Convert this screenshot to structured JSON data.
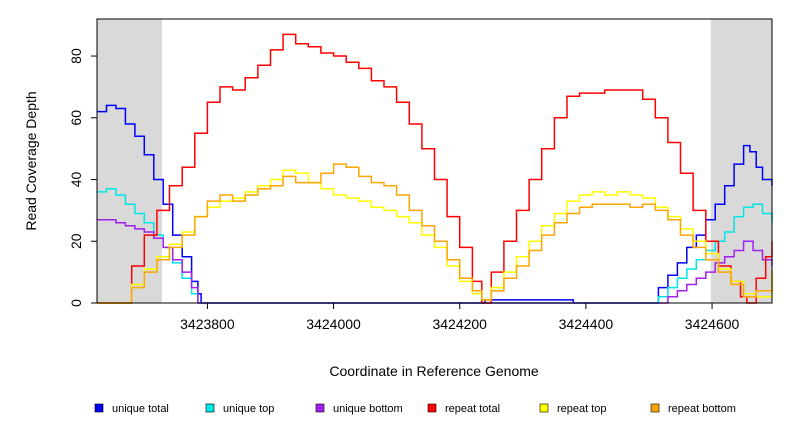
{
  "chart_data": {
    "type": "line",
    "title": "",
    "xlabel": "Coordinate in Reference Genome",
    "ylabel": "Read Coverage Depth",
    "xlim": [
      3423625,
      3424695
    ],
    "ylim": [
      0,
      92
    ],
    "x_ticks": [
      3423800,
      3424000,
      3424200,
      3424400,
      3424600
    ],
    "x_tick_labels": [
      "3423800",
      "3424000",
      "3424200",
      "3424400",
      "3424600"
    ],
    "y_ticks": [
      0,
      20,
      40,
      60,
      80
    ],
    "y_tick_labels": [
      "0",
      "20",
      "40",
      "60",
      "80"
    ],
    "grid": false,
    "legend_position": "bottom",
    "shaded_regions": [
      [
        3423625,
        3423728
      ],
      [
        3424598,
        3424695
      ]
    ],
    "shade_color": "#d9d9d9",
    "series": [
      {
        "name": "unique total",
        "color": "#0000ff",
        "x": [
          3423625,
          3423640,
          3423655,
          3423670,
          3423685,
          3423700,
          3423715,
          3423730,
          3423745,
          3423760,
          3423775,
          3423785,
          3423790,
          3424235,
          3424240,
          3424375,
          3424380,
          3424500,
          3424515,
          3424530,
          3424545,
          3424560,
          3424575,
          3424590,
          3424605,
          3424620,
          3424635,
          3424650,
          3424660,
          3424670,
          3424680,
          3424695
        ],
        "y": [
          62,
          64,
          63,
          58,
          54,
          48,
          40,
          32,
          22,
          15,
          7,
          3,
          0,
          0,
          1,
          1,
          0,
          0,
          5,
          9,
          13,
          18,
          22,
          27,
          32,
          38,
          45,
          51,
          49,
          44,
          40,
          38
        ]
      },
      {
        "name": "unique top",
        "color": "#00e5e5",
        "x": [
          3423625,
          3423640,
          3423655,
          3423670,
          3423685,
          3423700,
          3423715,
          3423730,
          3423745,
          3423760,
          3423775,
          3423785,
          3424500,
          3424515,
          3424530,
          3424545,
          3424560,
          3424575,
          3424590,
          3424605,
          3424620,
          3424635,
          3424650,
          3424665,
          3424680,
          3424695
        ],
        "y": [
          36,
          37,
          35,
          32,
          29,
          26,
          22,
          18,
          13,
          8,
          3,
          0,
          0,
          2,
          5,
          8,
          11,
          14,
          17,
          20,
          23,
          28,
          31,
          32,
          29,
          26
        ]
      },
      {
        "name": "unique bottom",
        "color": "#a020f0",
        "x": [
          3423625,
          3423640,
          3423655,
          3423670,
          3423685,
          3423700,
          3423715,
          3423730,
          3423745,
          3423760,
          3423775,
          3423785,
          3424515,
          3424530,
          3424545,
          3424560,
          3424575,
          3424590,
          3424605,
          3424620,
          3424635,
          3424650,
          3424665,
          3424680,
          3424695
        ],
        "y": [
          27,
          27,
          26,
          25,
          24,
          23,
          21,
          18,
          14,
          10,
          5,
          0,
          0,
          2,
          4,
          6,
          8,
          10,
          13,
          15,
          17,
          20,
          17,
          14,
          12
        ]
      },
      {
        "name": "repeat total",
        "color": "#ff0000",
        "x": [
          3423625,
          3423660,
          3423680,
          3423700,
          3423720,
          3423740,
          3423760,
          3423780,
          3423800,
          3423820,
          3423840,
          3423860,
          3423880,
          3423900,
          3423920,
          3423940,
          3423960,
          3423980,
          3424000,
          3424020,
          3424040,
          3424060,
          3424080,
          3424100,
          3424120,
          3424140,
          3424160,
          3424180,
          3424200,
          3424220,
          3424235,
          3424250,
          3424270,
          3424290,
          3424310,
          3424330,
          3424350,
          3424370,
          3424390,
          3424410,
          3424430,
          3424450,
          3424470,
          3424490,
          3424510,
          3424530,
          3424550,
          3424570,
          3424590,
          3424610,
          3424630,
          3424645,
          3424655,
          3424670,
          3424685,
          3424695
        ],
        "y": [
          0,
          0,
          12,
          22,
          30,
          38,
          44,
          55,
          65,
          70,
          69,
          73,
          77,
          82,
          87,
          84,
          83,
          81,
          80,
          78,
          76,
          72,
          70,
          65,
          58,
          50,
          40,
          28,
          18,
          7,
          0,
          10,
          20,
          30,
          40,
          50,
          60,
          67,
          68,
          68,
          69,
          69,
          69,
          66,
          60,
          52,
          42,
          30,
          20,
          12,
          7,
          2,
          0,
          8,
          15,
          20
        ]
      },
      {
        "name": "repeat top",
        "color": "#ffff00",
        "x": [
          3423625,
          3423660,
          3423680,
          3423700,
          3423720,
          3423740,
          3423760,
          3423780,
          3423800,
          3423820,
          3423840,
          3423860,
          3423880,
          3423900,
          3423920,
          3423940,
          3423960,
          3423980,
          3424000,
          3424020,
          3424040,
          3424060,
          3424080,
          3424100,
          3424120,
          3424140,
          3424160,
          3424180,
          3424200,
          3424220,
          3424235,
          3424250,
          3424270,
          3424290,
          3424310,
          3424330,
          3424350,
          3424370,
          3424390,
          3424410,
          3424430,
          3424450,
          3424470,
          3424490,
          3424510,
          3424530,
          3424550,
          3424570,
          3424590,
          3424610,
          3424630,
          3424650,
          3424670,
          3424695
        ],
        "y": [
          0,
          0,
          6,
          11,
          15,
          19,
          23,
          28,
          31,
          33,
          34,
          36,
          38,
          40,
          43,
          42,
          39,
          37,
          35,
          34,
          33,
          31,
          30,
          28,
          26,
          22,
          18,
          12,
          7,
          3,
          1,
          5,
          10,
          15,
          20,
          25,
          29,
          33,
          35,
          36,
          35,
          36,
          35,
          34,
          31,
          28,
          24,
          20,
          16,
          11,
          7,
          3,
          2,
          9
        ]
      },
      {
        "name": "repeat bottom",
        "color": "#ffa500",
        "x": [
          3423625,
          3423660,
          3423680,
          3423700,
          3423720,
          3423740,
          3423760,
          3423780,
          3423800,
          3423820,
          3423840,
          3423860,
          3423880,
          3423900,
          3423920,
          3423940,
          3423960,
          3423980,
          3424000,
          3424020,
          3424040,
          3424060,
          3424080,
          3424100,
          3424120,
          3424140,
          3424160,
          3424180,
          3424200,
          3424220,
          3424235,
          3424250,
          3424270,
          3424290,
          3424310,
          3424330,
          3424350,
          3424370,
          3424390,
          3424410,
          3424430,
          3424450,
          3424470,
          3424490,
          3424510,
          3424530,
          3424550,
          3424570,
          3424590,
          3424610,
          3424630,
          3424650,
          3424670,
          3424695
        ],
        "y": [
          0,
          0,
          5,
          10,
          14,
          18,
          22,
          28,
          33,
          35,
          33,
          35,
          37,
          38,
          41,
          39,
          39,
          42,
          45,
          44,
          41,
          39,
          38,
          35,
          30,
          25,
          20,
          14,
          8,
          4,
          1,
          4,
          8,
          12,
          17,
          22,
          26,
          29,
          31,
          32,
          32,
          32,
          31,
          32,
          30,
          27,
          22,
          18,
          14,
          10,
          6,
          2,
          4,
          11
        ]
      }
    ]
  }
}
